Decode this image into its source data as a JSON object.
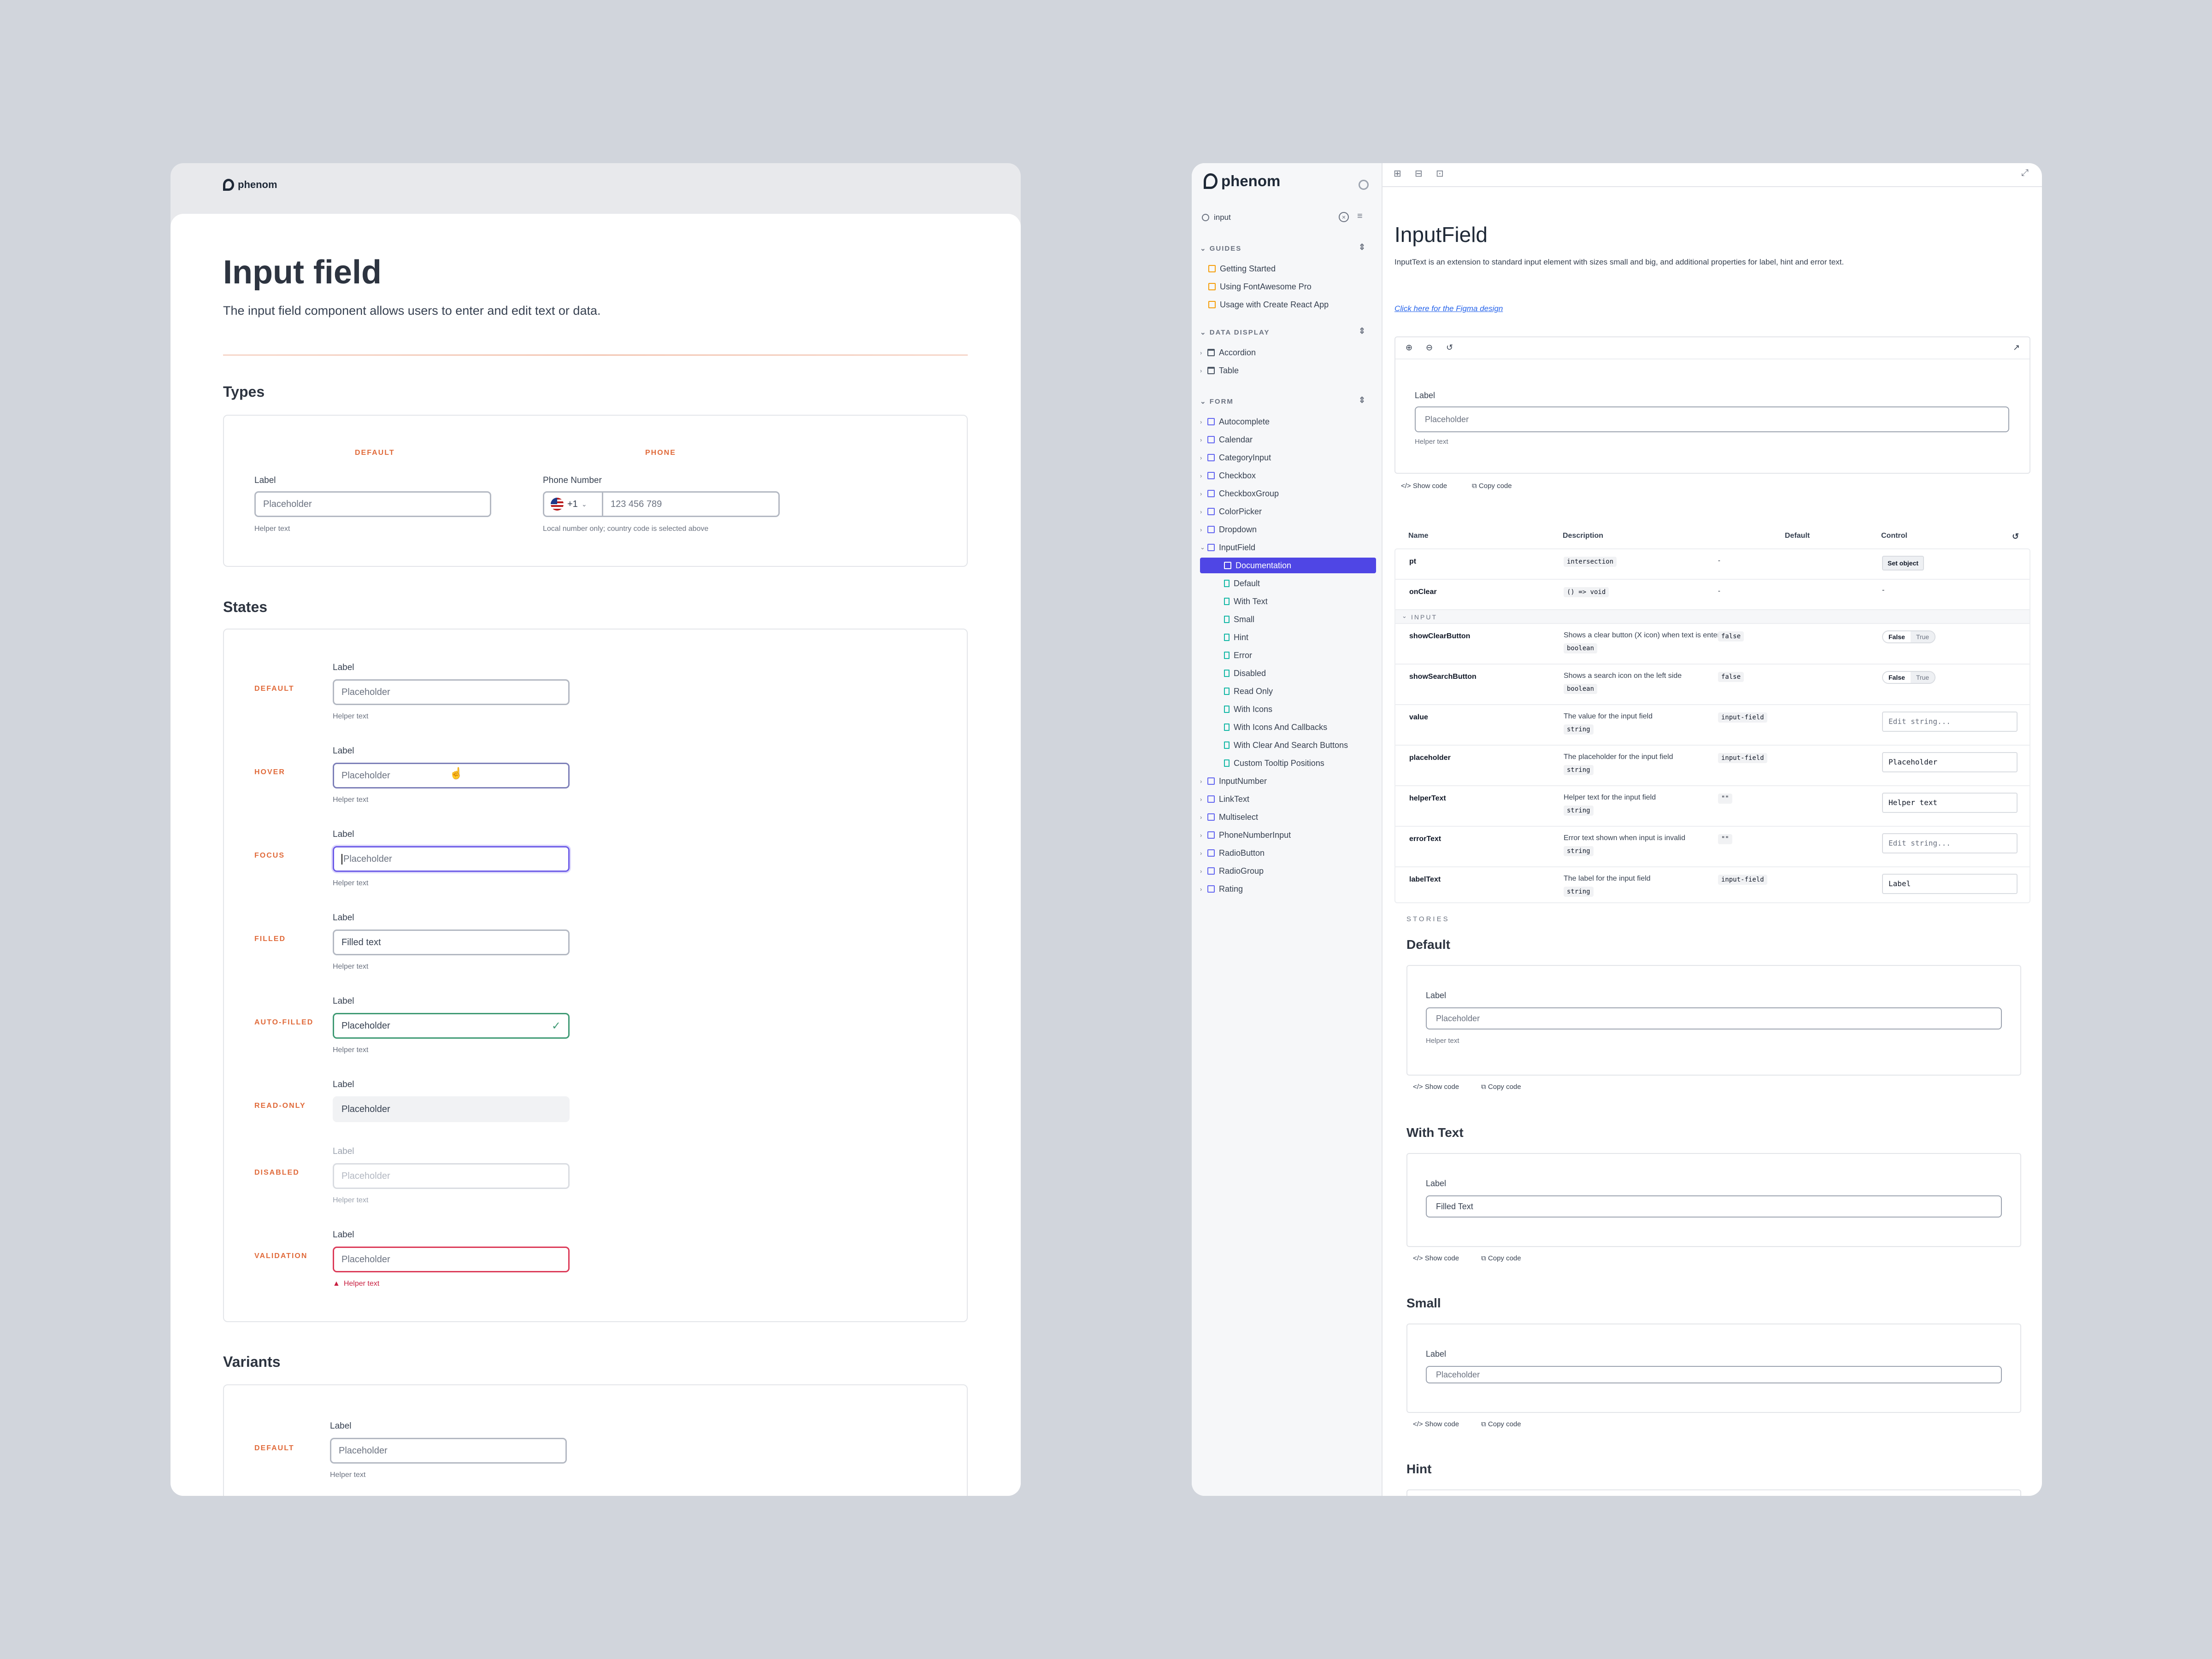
{
  "left": {
    "brand": "phenom",
    "title": "Input field",
    "lead": "The input field component allows users to enter and edit text or data.",
    "types": {
      "heading": "Types",
      "default_tag": "DEFAULT",
      "phone_tag": "PHONE",
      "default": {
        "label": "Label",
        "placeholder": "Placeholder",
        "helper": "Helper text"
      },
      "phone": {
        "label": "Phone Number",
        "code": "+1",
        "placeholder": "123 456 789",
        "helper": "Local number only; country code is selected above"
      }
    },
    "states": {
      "heading": "States",
      "items": [
        {
          "tag": "DEFAULT",
          "label": "Label",
          "value": "Placeholder",
          "helper": "Helper text"
        },
        {
          "tag": "HOVER",
          "label": "Label",
          "value": "Placeholder",
          "helper": "Helper text"
        },
        {
          "tag": "FOCUS",
          "label": "Label",
          "value": "Placeholder",
          "helper": "Helper text"
        },
        {
          "tag": "FILLED",
          "label": "Label",
          "value": "Filled text",
          "helper": "Helper text"
        },
        {
          "tag": "AUTO-FILLED",
          "label": "Label",
          "value": "Placeholder",
          "helper": "Helper text"
        },
        {
          "tag": "READ-ONLY",
          "label": "Label",
          "value": "Placeholder",
          "helper": ""
        },
        {
          "tag": "DISABLED",
          "label": "Label",
          "value": "Placeholder",
          "helper": "Helper text"
        },
        {
          "tag": "VALIDATION",
          "label": "Label",
          "value": "Placeholder",
          "helper": "Helper text"
        }
      ]
    },
    "variants": {
      "heading": "Variants",
      "tag": "DEFAULT",
      "label": "Label",
      "placeholder": "Placeholder",
      "helper": "Helper text"
    }
  },
  "right": {
    "brand": "phenom",
    "search_value": "input",
    "groups": {
      "guides": "GUIDES",
      "data_display": "DATA DISPLAY",
      "form": "FORM"
    },
    "guides": [
      "Getting Started",
      "Using FontAwesome Pro",
      "Usage with Create React App"
    ],
    "data_display": [
      "Accordion",
      "Table"
    ],
    "form_before": [
      "Autocomplete",
      "Calendar",
      "CategoryInput",
      "Checkbox",
      "CheckboxGroup",
      "ColorPicker",
      "Dropdown",
      "InputField"
    ],
    "form_active": "Documentation",
    "form_stories": [
      "Default",
      "With Text",
      "Small",
      "Hint",
      "Error",
      "Disabled",
      "Read Only",
      "With Icons",
      "With Icons And Callbacks",
      "With Clear And Search Buttons",
      "Custom Tooltip Positions"
    ],
    "form_after": [
      "InputNumber",
      "LinkText",
      "Multiselect",
      "PhoneNumberInput",
      "RadioButton",
      "RadioGroup",
      "Rating"
    ],
    "doc": {
      "title": "InputField",
      "desc": "InputText is an extension to standard input element with sizes small and big, and additional properties for label, hint and error text.",
      "figma_link": "Click here for the Figma design",
      "preview": {
        "label": "Label",
        "placeholder": "Placeholder",
        "helper": "Helper text"
      },
      "show_code": "Show code",
      "copy_code": "Copy code"
    },
    "table": {
      "headers": {
        "name": "Name",
        "description": "Description",
        "default": "Default",
        "control": "Control"
      },
      "group_input": "INPUT",
      "toggle": {
        "false": "False",
        "true": "True"
      },
      "set_object": "Set object",
      "rows": [
        {
          "name": "pt",
          "desc": "",
          "type": "intersection",
          "default": "-",
          "control": "setobj"
        },
        {
          "name": "onClear",
          "desc": "",
          "type": "() => void",
          "default": "-",
          "control": "-"
        },
        {
          "name": "showClearButton",
          "desc": "Shows a clear button (X icon) when text is entered",
          "type": "boolean",
          "default": "false",
          "control": "toggle"
        },
        {
          "name": "showSearchButton",
          "desc": "Shows a search icon on the left side",
          "type": "boolean",
          "default": "false",
          "control": "toggle"
        },
        {
          "name": "value",
          "desc": "The value for the input field",
          "type": "string",
          "default": "input-field",
          "control": "Edit string..."
        },
        {
          "name": "placeholder",
          "desc": "The placeholder for the input field",
          "type": "string",
          "default": "input-field",
          "control": "Placeholder"
        },
        {
          "name": "helperText",
          "desc": "Helper text for the input field",
          "type": "string",
          "default": "\"\"",
          "control": "Helper text"
        },
        {
          "name": "errorText",
          "desc": "Error text shown when input is invalid",
          "type": "string",
          "default": "\"\"",
          "control": "Edit string..."
        },
        {
          "name": "labelText",
          "desc": "The label for the input field",
          "type": "string",
          "default": "input-field",
          "control": "Label"
        }
      ]
    },
    "stories": {
      "heading": "STORIES",
      "items": [
        {
          "title": "Default",
          "label": "Label",
          "value": "Placeholder",
          "helper": "Helper text"
        },
        {
          "title": "With Text",
          "label": "Label",
          "value": "Filled Text",
          "helper": ""
        },
        {
          "title": "Small",
          "label": "Label",
          "value": "Placeholder",
          "helper": ""
        },
        {
          "title": "Hint",
          "label": "",
          "value": "",
          "helper": ""
        }
      ]
    }
  }
}
